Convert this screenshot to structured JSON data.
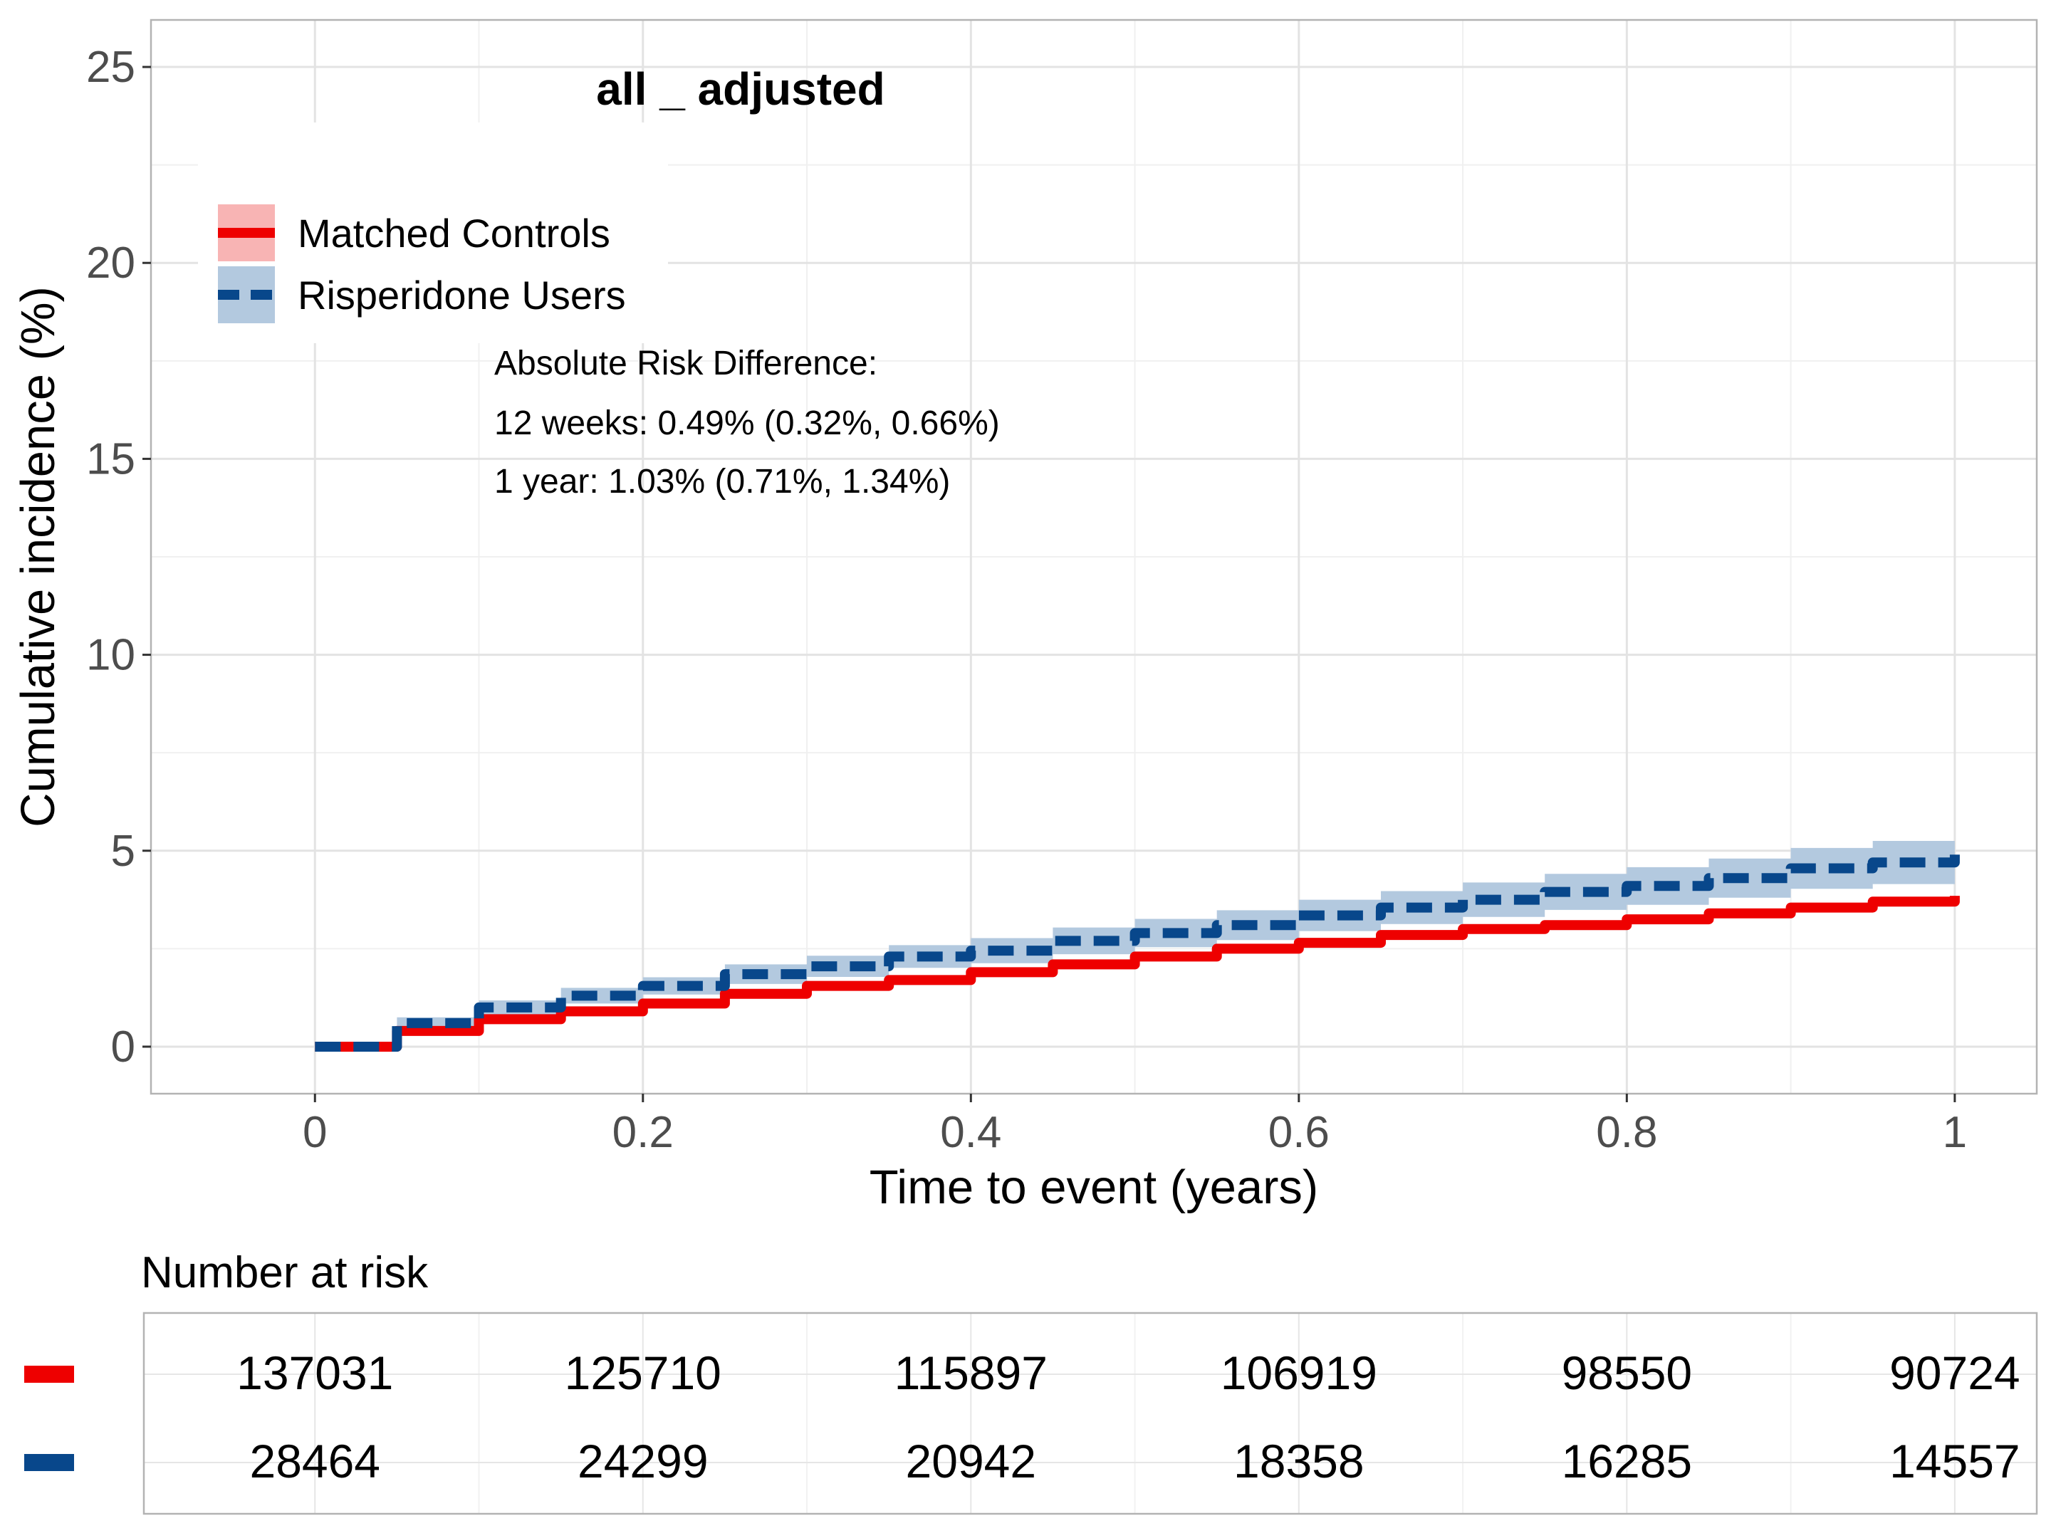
{
  "chart_data": {
    "type": "line",
    "title": "all _ adjusted",
    "xlabel": "Time to event (years)",
    "ylabel": "Cumulative incidence (%)",
    "xlim": [
      -0.1,
      1.05
    ],
    "ylim": [
      -1.2,
      26.2
    ],
    "x_ticks": [
      0,
      0.2,
      0.4,
      0.6,
      0.8,
      1
    ],
    "x_tick_labels": [
      "0",
      "0.2",
      "0.4",
      "0.6",
      "0.8",
      "1"
    ],
    "y_ticks": [
      0,
      5,
      10,
      15,
      20,
      25
    ],
    "y_tick_labels": [
      "0",
      "5",
      "10",
      "15",
      "20",
      "25"
    ],
    "grid": true,
    "legend_position": "top-left",
    "series": [
      {
        "name": "Matched Controls",
        "color": "#ee0000",
        "band_color": "#f8b4b4",
        "line_style": "solid",
        "x": [
          0,
          0.05,
          0.1,
          0.15,
          0.2,
          0.25,
          0.3,
          0.35,
          0.4,
          0.45,
          0.5,
          0.55,
          0.6,
          0.65,
          0.7,
          0.75,
          0.8,
          0.85,
          0.9,
          0.95,
          1
        ],
        "y": [
          0,
          0.4,
          0.7,
          0.9,
          1.1,
          1.35,
          1.55,
          1.7,
          1.9,
          2.1,
          2.3,
          2.5,
          2.65,
          2.85,
          3.0,
          3.1,
          3.25,
          3.4,
          3.55,
          3.7,
          3.85
        ],
        "lower": [
          0,
          0.36,
          0.65,
          0.85,
          1.05,
          1.29,
          1.49,
          1.64,
          1.84,
          2.03,
          2.23,
          2.43,
          2.58,
          2.77,
          2.92,
          3.02,
          3.17,
          3.31,
          3.46,
          3.61,
          3.76
        ],
        "upper": [
          0,
          0.44,
          0.75,
          0.95,
          1.15,
          1.41,
          1.61,
          1.76,
          1.96,
          2.17,
          2.37,
          2.57,
          2.72,
          2.93,
          3.08,
          3.18,
          3.33,
          3.49,
          3.64,
          3.79,
          3.94
        ]
      },
      {
        "name": "Risperidone Users",
        "color": "#08478b",
        "band_color": "#b3c9df",
        "line_style": "dashed",
        "x": [
          0,
          0.05,
          0.1,
          0.15,
          0.2,
          0.25,
          0.3,
          0.35,
          0.4,
          0.45,
          0.5,
          0.55,
          0.6,
          0.65,
          0.7,
          0.75,
          0.8,
          0.85,
          0.9,
          0.95,
          1
        ],
        "y": [
          0,
          0.6,
          1.0,
          1.3,
          1.55,
          1.85,
          2.05,
          2.3,
          2.45,
          2.7,
          2.9,
          3.1,
          3.35,
          3.55,
          3.75,
          3.95,
          4.1,
          4.3,
          4.55,
          4.7,
          4.9
        ],
        "lower": [
          0,
          0.45,
          0.82,
          1.1,
          1.33,
          1.6,
          1.78,
          2.01,
          2.13,
          2.36,
          2.54,
          2.72,
          2.95,
          3.13,
          3.31,
          3.49,
          3.62,
          3.8,
          4.03,
          4.15,
          4.33
        ],
        "upper": [
          0,
          0.75,
          1.18,
          1.5,
          1.77,
          2.1,
          2.32,
          2.59,
          2.77,
          3.04,
          3.26,
          3.48,
          3.75,
          3.97,
          4.19,
          4.41,
          4.58,
          4.8,
          5.07,
          5.25,
          5.47
        ]
      }
    ],
    "annotations": [
      "Absolute Risk Difference:",
      "12 weeks: 0.49% (0.32%, 0.66%)",
      "1 year: 1.03% (0.71%, 1.34%)"
    ],
    "risk_table": {
      "title": "Number at risk",
      "rows": [
        {
          "color": "#ee0000",
          "values": [
            "137031",
            "125710",
            "115897",
            "106919",
            "98550",
            "90724"
          ]
        },
        {
          "color": "#08478b",
          "values": [
            "28464",
            "24299",
            "20942",
            "18358",
            "16285",
            "14557"
          ]
        }
      ]
    }
  }
}
